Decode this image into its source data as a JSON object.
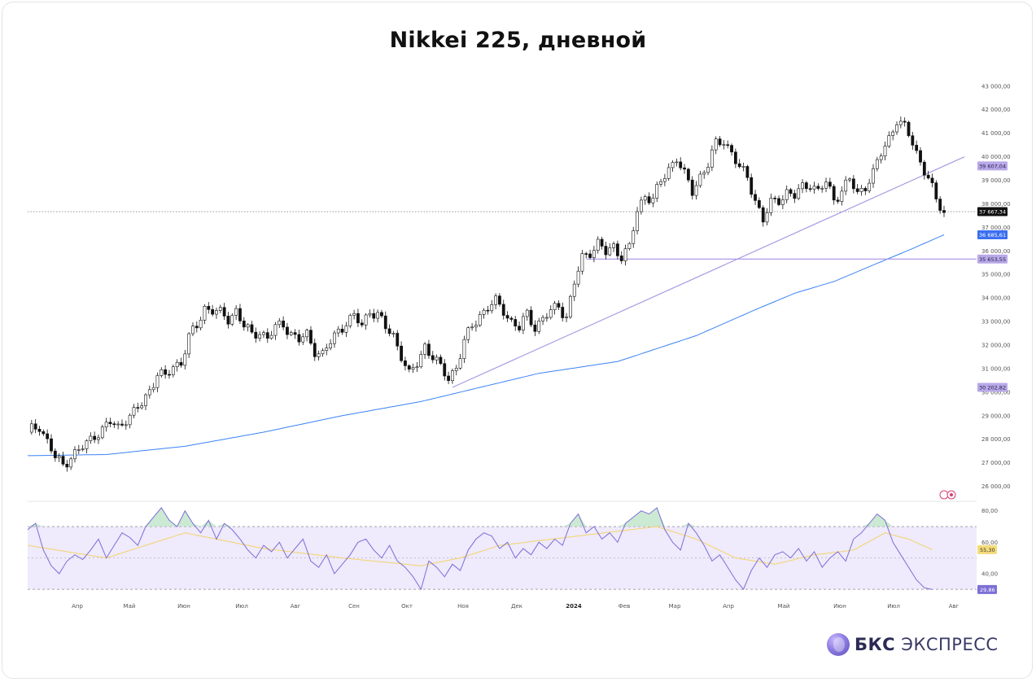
{
  "title": "Nikkei 225, дневной",
  "brand": {
    "strong": "БКС",
    "light": "ЭКСПРЕСС"
  },
  "colors": {
    "candle_up": "#ffffff",
    "candle_down": "#111111",
    "ma_line": "#3b82f6",
    "trend_line": "#a79be3",
    "support_line": "#a68fe6",
    "rsi_line": "#7b6fd6",
    "rsi_ma": "#f3d36b",
    "rsi_band": "#efeafc",
    "last_price_bg": "#111111",
    "ma_badge_bg": "#3b6ff0",
    "level_badge_bg": "#b9a9e8"
  },
  "chart_data": [
    {
      "type": "candlestick",
      "title": "",
      "y_range": [
        25500,
        43200
      ],
      "y_ticks": [
        26000,
        27000,
        28000,
        29000,
        30000,
        31000,
        32000,
        33000,
        34000,
        35000,
        36000,
        37000,
        38000,
        39000,
        40000,
        41000,
        42000,
        43000
      ],
      "y_tick_labels": [
        "26 000,00",
        "27 000,00",
        "28 000,00",
        "29 000,00",
        "30 000,00",
        "31 000,00",
        "32 000,00",
        "33 000,00",
        "34 000,00",
        "35 000,00",
        "36 000,00",
        "37 000,00",
        "38 000,00",
        "39 000,00",
        "40 000,00",
        "41 000,00",
        "42 000,00",
        "43 000,00"
      ],
      "x_labels": [
        "Апр",
        "Май",
        "Июн",
        "Июл",
        "Авг",
        "Сен",
        "Окт",
        "Ноя",
        "Дек",
        "2024",
        "Фев",
        "Мар",
        "Апр",
        "Май",
        "Июн",
        "Июл",
        "Авг"
      ],
      "last_price": 37667.34,
      "last_price_label": "37 667,34",
      "badges": [
        {
          "value": 39607.04,
          "label": "39 607,04",
          "kind": "trend"
        },
        {
          "value": 36685.61,
          "label": "36 685,61",
          "kind": "ma"
        },
        {
          "value": 35653.55,
          "label": "35 653,55",
          "kind": "level"
        },
        {
          "value": 30202.82,
          "label": "30 202,82",
          "kind": "level"
        }
      ],
      "close_path": [
        [
          0,
          28300
        ],
        [
          3,
          28600
        ],
        [
          5,
          27900
        ],
        [
          7,
          27200
        ],
        [
          9,
          26900
        ],
        [
          11,
          27300
        ],
        [
          13,
          27500
        ],
        [
          15,
          27800
        ],
        [
          17,
          28200
        ],
        [
          19,
          28400
        ],
        [
          21,
          28700
        ],
        [
          23,
          28500
        ],
        [
          25,
          28900
        ],
        [
          27,
          29100
        ],
        [
          29,
          29500
        ],
        [
          31,
          30100
        ],
        [
          33,
          30800
        ],
        [
          35,
          30600
        ],
        [
          37,
          31100
        ],
        [
          39,
          31300
        ],
        [
          41,
          32300
        ],
        [
          43,
          32800
        ],
        [
          45,
          33600
        ],
        [
          47,
          33500
        ],
        [
          49,
          33300
        ],
        [
          51,
          33100
        ],
        [
          53,
          33500
        ],
        [
          55,
          32800
        ],
        [
          57,
          32400
        ],
        [
          59,
          32600
        ],
        [
          61,
          32300
        ],
        [
          63,
          32700
        ],
        [
          65,
          32900
        ],
        [
          67,
          32500
        ],
        [
          69,
          32200
        ],
        [
          71,
          32400
        ],
        [
          73,
          31800
        ],
        [
          75,
          31600
        ],
        [
          77,
          32100
        ],
        [
          79,
          32600
        ],
        [
          81,
          33000
        ],
        [
          83,
          33200
        ],
        [
          85,
          32800
        ],
        [
          87,
          33500
        ],
        [
          89,
          33300
        ],
        [
          91,
          32700
        ],
        [
          93,
          32400
        ],
        [
          95,
          31600
        ],
        [
          97,
          30700
        ],
        [
          99,
          31200
        ],
        [
          101,
          32000
        ],
        [
          103,
          31500
        ],
        [
          105,
          31000
        ],
        [
          107,
          30600
        ],
        [
          109,
          31100
        ],
        [
          111,
          32100
        ],
        [
          113,
          32800
        ],
        [
          115,
          33300
        ],
        [
          117,
          33600
        ],
        [
          119,
          33800
        ],
        [
          121,
          33500
        ],
        [
          123,
          33000
        ],
        [
          125,
          32700
        ],
        [
          127,
          33300
        ],
        [
          129,
          32800
        ],
        [
          131,
          33100
        ],
        [
          133,
          33400
        ],
        [
          135,
          33700
        ],
        [
          137,
          33200
        ],
        [
          139,
          34600
        ],
        [
          141,
          35700
        ],
        [
          143,
          36000
        ],
        [
          145,
          36300
        ],
        [
          147,
          35900
        ],
        [
          149,
          36200
        ],
        [
          151,
          35800
        ],
        [
          153,
          36100
        ],
        [
          155,
          37700
        ],
        [
          157,
          38400
        ],
        [
          159,
          38200
        ],
        [
          161,
          38900
        ],
        [
          163,
          39500
        ],
        [
          165,
          40000
        ],
        [
          167,
          39200
        ],
        [
          169,
          38500
        ],
        [
          171,
          39200
        ],
        [
          173,
          39700
        ],
        [
          175,
          40500
        ],
        [
          177,
          40700
        ],
        [
          179,
          40200
        ],
        [
          181,
          39500
        ],
        [
          183,
          39100
        ],
        [
          185,
          38200
        ],
        [
          187,
          37300
        ],
        [
          189,
          38000
        ],
        [
          191,
          38200
        ],
        [
          193,
          38500
        ],
        [
          195,
          38300
        ],
        [
          197,
          38700
        ],
        [
          199,
          38900
        ],
        [
          201,
          38500
        ],
        [
          203,
          38900
        ],
        [
          205,
          38200
        ],
        [
          207,
          38600
        ],
        [
          209,
          39000
        ],
        [
          211,
          38400
        ],
        [
          213,
          38800
        ],
        [
          215,
          39300
        ],
        [
          217,
          40100
        ],
        [
          219,
          40800
        ],
        [
          221,
          41600
        ],
        [
          223,
          41200
        ],
        [
          225,
          40600
        ],
        [
          227,
          39800
        ],
        [
          229,
          39100
        ],
        [
          231,
          38100
        ],
        [
          233,
          37667
        ]
      ],
      "series": [
        {
          "name": "",
          "kind": "moving-average",
          "points": [
            [
              0,
              27300
            ],
            [
              20,
              27350
            ],
            [
              40,
              27700
            ],
            [
              60,
              28300
            ],
            [
              80,
              29000
            ],
            [
              100,
              29600
            ],
            [
              110,
              30000
            ],
            [
              130,
              30800
            ],
            [
              150,
              31300
            ],
            [
              170,
              32400
            ],
            [
              185,
              33500
            ],
            [
              195,
              34200
            ],
            [
              205,
              34700
            ],
            [
              215,
              35400
            ],
            [
              225,
              36100
            ],
            [
              233,
              36685
            ]
          ]
        },
        {
          "name": "",
          "kind": "trendline",
          "points": [
            [
              108,
              30202
            ],
            [
              233,
              39607
            ]
          ]
        },
        {
          "name": "",
          "kind": "horizontal-level",
          "points": [
            [
              140,
              35653
            ],
            [
              233,
              35653
            ]
          ]
        }
      ]
    },
    {
      "type": "line",
      "title": "",
      "y_range": [
        28,
        84
      ],
      "y_ticks": [
        40,
        60,
        80
      ],
      "y_tick_labels": [
        "40,00",
        "60,00",
        "80,00"
      ],
      "band": [
        30,
        70
      ],
      "last_rsi_label": "29,86",
      "last_ma_label": "55,30",
      "series": [
        {
          "name": "",
          "kind": "rsi",
          "points": [
            [
              0,
              68
            ],
            [
              2,
              72
            ],
            [
              4,
              55
            ],
            [
              6,
              45
            ],
            [
              8,
              40
            ],
            [
              10,
              48
            ],
            [
              12,
              52
            ],
            [
              14,
              49
            ],
            [
              16,
              55
            ],
            [
              18,
              62
            ],
            [
              20,
              50
            ],
            [
              22,
              58
            ],
            [
              24,
              66
            ],
            [
              26,
              63
            ],
            [
              28,
              58
            ],
            [
              30,
              70
            ],
            [
              32,
              76
            ],
            [
              34,
              82
            ],
            [
              36,
              74
            ],
            [
              38,
              70
            ],
            [
              40,
              80
            ],
            [
              42,
              72
            ],
            [
              44,
              66
            ],
            [
              46,
              74
            ],
            [
              48,
              62
            ],
            [
              50,
              72
            ],
            [
              52,
              68
            ],
            [
              54,
              62
            ],
            [
              56,
              55
            ],
            [
              58,
              50
            ],
            [
              60,
              58
            ],
            [
              62,
              54
            ],
            [
              64,
              60
            ],
            [
              66,
              50
            ],
            [
              68,
              56
            ],
            [
              70,
              62
            ],
            [
              72,
              48
            ],
            [
              74,
              44
            ],
            [
              76,
              52
            ],
            [
              78,
              40
            ],
            [
              80,
              46
            ],
            [
              82,
              52
            ],
            [
              84,
              60
            ],
            [
              86,
              62
            ],
            [
              88,
              55
            ],
            [
              90,
              50
            ],
            [
              92,
              58
            ],
            [
              94,
              48
            ],
            [
              96,
              44
            ],
            [
              98,
              38
            ],
            [
              100,
              30
            ],
            [
              102,
              48
            ],
            [
              104,
              44
            ],
            [
              106,
              38
            ],
            [
              108,
              46
            ],
            [
              110,
              42
            ],
            [
              112,
              55
            ],
            [
              114,
              62
            ],
            [
              116,
              66
            ],
            [
              118,
              64
            ],
            [
              120,
              56
            ],
            [
              122,
              60
            ],
            [
              124,
              50
            ],
            [
              126,
              56
            ],
            [
              128,
              52
            ],
            [
              130,
              60
            ],
            [
              132,
              56
            ],
            [
              134,
              62
            ],
            [
              136,
              58
            ],
            [
              138,
              72
            ],
            [
              140,
              78
            ],
            [
              142,
              66
            ],
            [
              144,
              70
            ],
            [
              146,
              62
            ],
            [
              148,
              66
            ],
            [
              150,
              60
            ],
            [
              152,
              72
            ],
            [
              154,
              76
            ],
            [
              156,
              80
            ],
            [
              158,
              78
            ],
            [
              160,
              82
            ],
            [
              162,
              68
            ],
            [
              164,
              60
            ],
            [
              166,
              55
            ],
            [
              168,
              72
            ],
            [
              170,
              66
            ],
            [
              172,
              58
            ],
            [
              174,
              48
            ],
            [
              176,
              52
            ],
            [
              178,
              44
            ],
            [
              180,
              36
            ],
            [
              182,
              30
            ],
            [
              184,
              42
            ],
            [
              186,
              50
            ],
            [
              188,
              44
            ],
            [
              190,
              52
            ],
            [
              192,
              54
            ],
            [
              194,
              50
            ],
            [
              196,
              56
            ],
            [
              198,
              48
            ],
            [
              200,
              54
            ],
            [
              202,
              44
            ],
            [
              204,
              50
            ],
            [
              206,
              54
            ],
            [
              208,
              48
            ],
            [
              210,
              62
            ],
            [
              212,
              66
            ],
            [
              214,
              72
            ],
            [
              216,
              78
            ],
            [
              218,
              74
            ],
            [
              220,
              60
            ],
            [
              222,
              52
            ],
            [
              224,
              44
            ],
            [
              226,
              36
            ],
            [
              228,
              31
            ],
            [
              230,
              29.86
            ]
          ]
        },
        {
          "name": "",
          "kind": "rsi-ma",
          "points": [
            [
              0,
              58
            ],
            [
              20,
              50
            ],
            [
              40,
              66
            ],
            [
              60,
              56
            ],
            [
              80,
              50
            ],
            [
              100,
              45
            ],
            [
              110,
              50
            ],
            [
              120,
              58
            ],
            [
              140,
              64
            ],
            [
              160,
              70
            ],
            [
              170,
              62
            ],
            [
              180,
              50
            ],
            [
              190,
              46
            ],
            [
              200,
              52
            ],
            [
              210,
              55
            ],
            [
              218,
              66
            ],
            [
              224,
              62
            ],
            [
              230,
              55.3
            ]
          ]
        }
      ]
    }
  ]
}
